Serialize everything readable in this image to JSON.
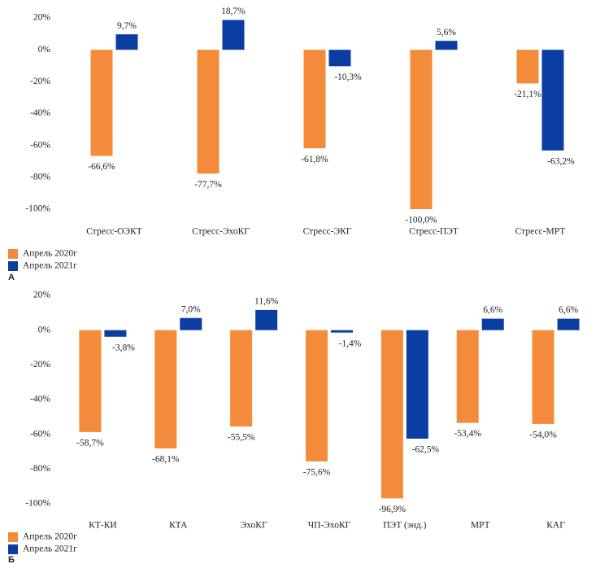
{
  "chart_data": [
    {
      "type": "bar",
      "panel_label": "А",
      "categories": [
        "Стресс-ОЭКТ",
        "Стресс-ЭхоКГ",
        "Стресс-ЭКГ",
        "Стресс-ПЭТ",
        "Стресс-МРТ"
      ],
      "series": [
        {
          "name": "Апрель 2020г",
          "color": "#f38b3b",
          "values": [
            -66.6,
            -77.7,
            -61.8,
            -100.0,
            -21.1
          ],
          "value_labels": [
            "-66,6%",
            "-77,7%",
            "-61,8%",
            "-100,0%",
            "-21,1%"
          ]
        },
        {
          "name": "Апрель 2021г",
          "color": "#0b3ea3",
          "values": [
            9.7,
            18.7,
            -10.3,
            5.6,
            -63.2
          ],
          "value_labels": [
            "9,7%",
            "18,7%",
            "-10,3%",
            "5,6%",
            "-63,2%"
          ]
        }
      ],
      "ylim": [
        -100,
        20
      ],
      "yticks": [
        {
          "value": 20,
          "label": "20%"
        },
        {
          "value": 0,
          "label": "0%"
        },
        {
          "value": -20,
          "label": "-20%"
        },
        {
          "value": -40,
          "label": "-40%"
        },
        {
          "value": -60,
          "label": "-60%"
        },
        {
          "value": -80,
          "label": "-80%"
        },
        {
          "value": -100,
          "label": "-100%"
        }
      ],
      "grid": false
    },
    {
      "type": "bar",
      "panel_label": "Б",
      "categories": [
        "КТ-КИ",
        "КТА",
        "ЭхоКГ",
        "ЧП-ЭхоКГ",
        "ПЭТ (энд.)",
        "МРТ",
        "КАГ"
      ],
      "series": [
        {
          "name": "Апрель 2020г",
          "color": "#f38b3b",
          "values": [
            -58.7,
            -68.1,
            -55.5,
            -75.6,
            -96.9,
            -53.4,
            -54.0
          ],
          "value_labels": [
            "-58,7%",
            "-68,1%",
            "-55,5%",
            "-75,6%",
            "-96,9%",
            "-53,4%",
            "-54,0%"
          ]
        },
        {
          "name": "Апрель 2021г",
          "color": "#0b3ea3",
          "values": [
            -3.8,
            7.0,
            11.6,
            -1.4,
            -62.5,
            6.6,
            6.6
          ],
          "value_labels": [
            "-3,8%",
            "7,0%",
            "11,6%",
            "-1,4%",
            "-62,5%",
            "6,6%",
            "6,6%"
          ]
        }
      ],
      "ylim": [
        -100,
        20
      ],
      "yticks": [
        {
          "value": 20,
          "label": "20%"
        },
        {
          "value": 0,
          "label": "0%"
        },
        {
          "value": -20,
          "label": "-20%"
        },
        {
          "value": -40,
          "label": "-40%"
        },
        {
          "value": -60,
          "label": "-60%"
        },
        {
          "value": -80,
          "label": "-80%"
        },
        {
          "value": -100,
          "label": "-100%"
        }
      ],
      "grid": false
    }
  ]
}
